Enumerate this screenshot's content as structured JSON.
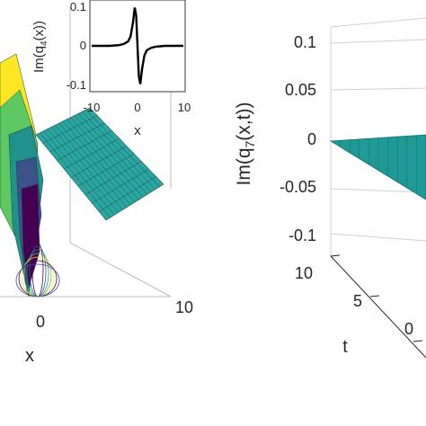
{
  "chart_data": [
    {
      "type": "surface",
      "panel": "left",
      "xlabel": "x",
      "xticks": [
        "0",
        "10"
      ],
      "colormap": [
        "#440154",
        "#3b528b",
        "#21918c",
        "#5ec962",
        "#fde725"
      ],
      "surface_color": "#2aa6a0",
      "inset": {
        "type": "line",
        "ylabel": "Im(q4(x))",
        "ylabel_main": "Im(q",
        "ylabel_sub": "4",
        "ylabel_end": "(x))",
        "xlabel": "x",
        "xticks": [
          "-10",
          "0",
          "10"
        ],
        "yticks": [
          "0.1",
          "0",
          "-0.1"
        ],
        "xlim": [
          -10,
          10
        ],
        "ylim": [
          -0.12,
          0.12
        ],
        "line_color": "#000000",
        "x": [
          -10,
          -6,
          -4,
          -3,
          -2,
          -1.5,
          -1,
          -0.6,
          -0.3,
          0,
          0.3,
          0.6,
          1,
          1.5,
          2,
          3,
          4,
          6,
          10
        ],
        "y": [
          0,
          0,
          0.002,
          0.005,
          0.012,
          0.025,
          0.06,
          0.1,
          0.08,
          0,
          -0.08,
          -0.1,
          -0.06,
          -0.025,
          -0.012,
          -0.005,
          -0.002,
          0,
          0
        ]
      }
    },
    {
      "type": "surface",
      "panel": "right",
      "ylabel": "Im(q7(x,t))",
      "ylabel_main": "Im(q",
      "ylabel_sub": "7",
      "ylabel_end": "(x,t))",
      "zticks": [
        "0.1",
        "0.05",
        "0",
        "-0.05",
        "-0.1"
      ],
      "zlim": [
        -0.1,
        0.1
      ],
      "tlabel": "t",
      "tticks": [
        "10",
        "5",
        "0"
      ],
      "xticks": [
        "0"
      ],
      "surface_color": "#1f9a96"
    }
  ]
}
